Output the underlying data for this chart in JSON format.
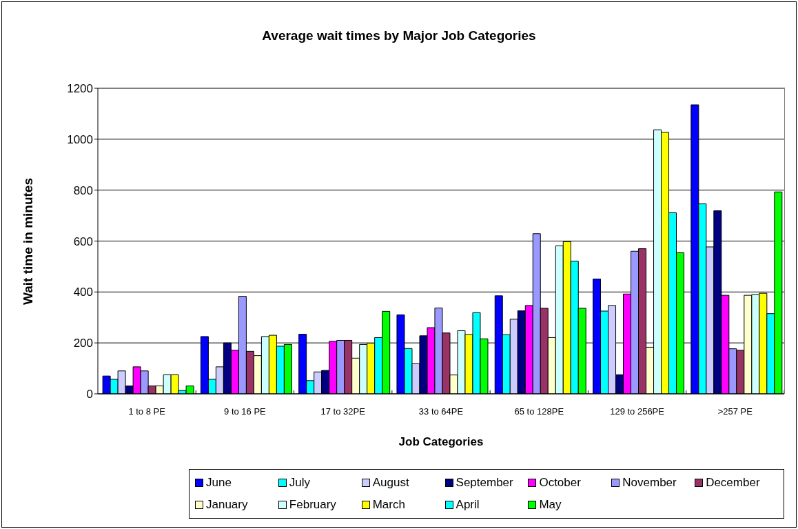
{
  "chart_data": {
    "type": "bar",
    "title": "Average wait times by Major Job Categories",
    "xlabel": "Job Categories",
    "ylabel": "Wait time in minutes",
    "categories": [
      "1 to 8 PE",
      "9 to 16 PE",
      "17 to 32PE",
      "33 to 64PE",
      "65 to 128PE",
      "129 to 256PE",
      ">257 PE"
    ],
    "series": [
      {
        "name": "June",
        "color": "#0000ff",
        "values": [
          70,
          225,
          234,
          310,
          385,
          451,
          1135
        ]
      },
      {
        "name": "July",
        "color": "#00ffff",
        "values": [
          57,
          57,
          52,
          178,
          232,
          325,
          746
        ]
      },
      {
        "name": "August",
        "color": "#ccccff",
        "values": [
          90,
          106,
          86,
          118,
          293,
          347,
          577
        ]
      },
      {
        "name": "September",
        "color": "#000080",
        "values": [
          31,
          200,
          92,
          228,
          326,
          75,
          719
        ]
      },
      {
        "name": "October",
        "color": "#ff00ff",
        "values": [
          106,
          171,
          206,
          260,
          347,
          392,
          387
        ]
      },
      {
        "name": "November",
        "color": "#9999ff",
        "values": [
          90,
          383,
          210,
          337,
          629,
          560,
          177
        ]
      },
      {
        "name": "December",
        "color": "#993366",
        "values": [
          31,
          167,
          210,
          239,
          336,
          570,
          171
        ]
      },
      {
        "name": "January",
        "color": "#ffffcc",
        "values": [
          31,
          150,
          140,
          74,
          221,
          183,
          387
        ]
      },
      {
        "name": "February",
        "color": "#ccffff",
        "values": [
          75,
          225,
          194,
          248,
          581,
          1037,
          390
        ]
      },
      {
        "name": "March",
        "color": "#ffff00",
        "values": [
          75,
          230,
          199,
          233,
          598,
          1027,
          395
        ]
      },
      {
        "name": "April",
        "color": "#00ffff",
        "values": [
          13,
          187,
          221,
          319,
          521,
          711,
          315
        ]
      },
      {
        "name": "May",
        "color": "#00ff00",
        "values": [
          31,
          194,
          324,
          216,
          336,
          554,
          793
        ]
      }
    ],
    "ylim": [
      0,
      1200
    ],
    "yticks": [
      0,
      200,
      400,
      600,
      800,
      1000,
      1200
    ],
    "grid": "y",
    "legend": "bottom"
  }
}
